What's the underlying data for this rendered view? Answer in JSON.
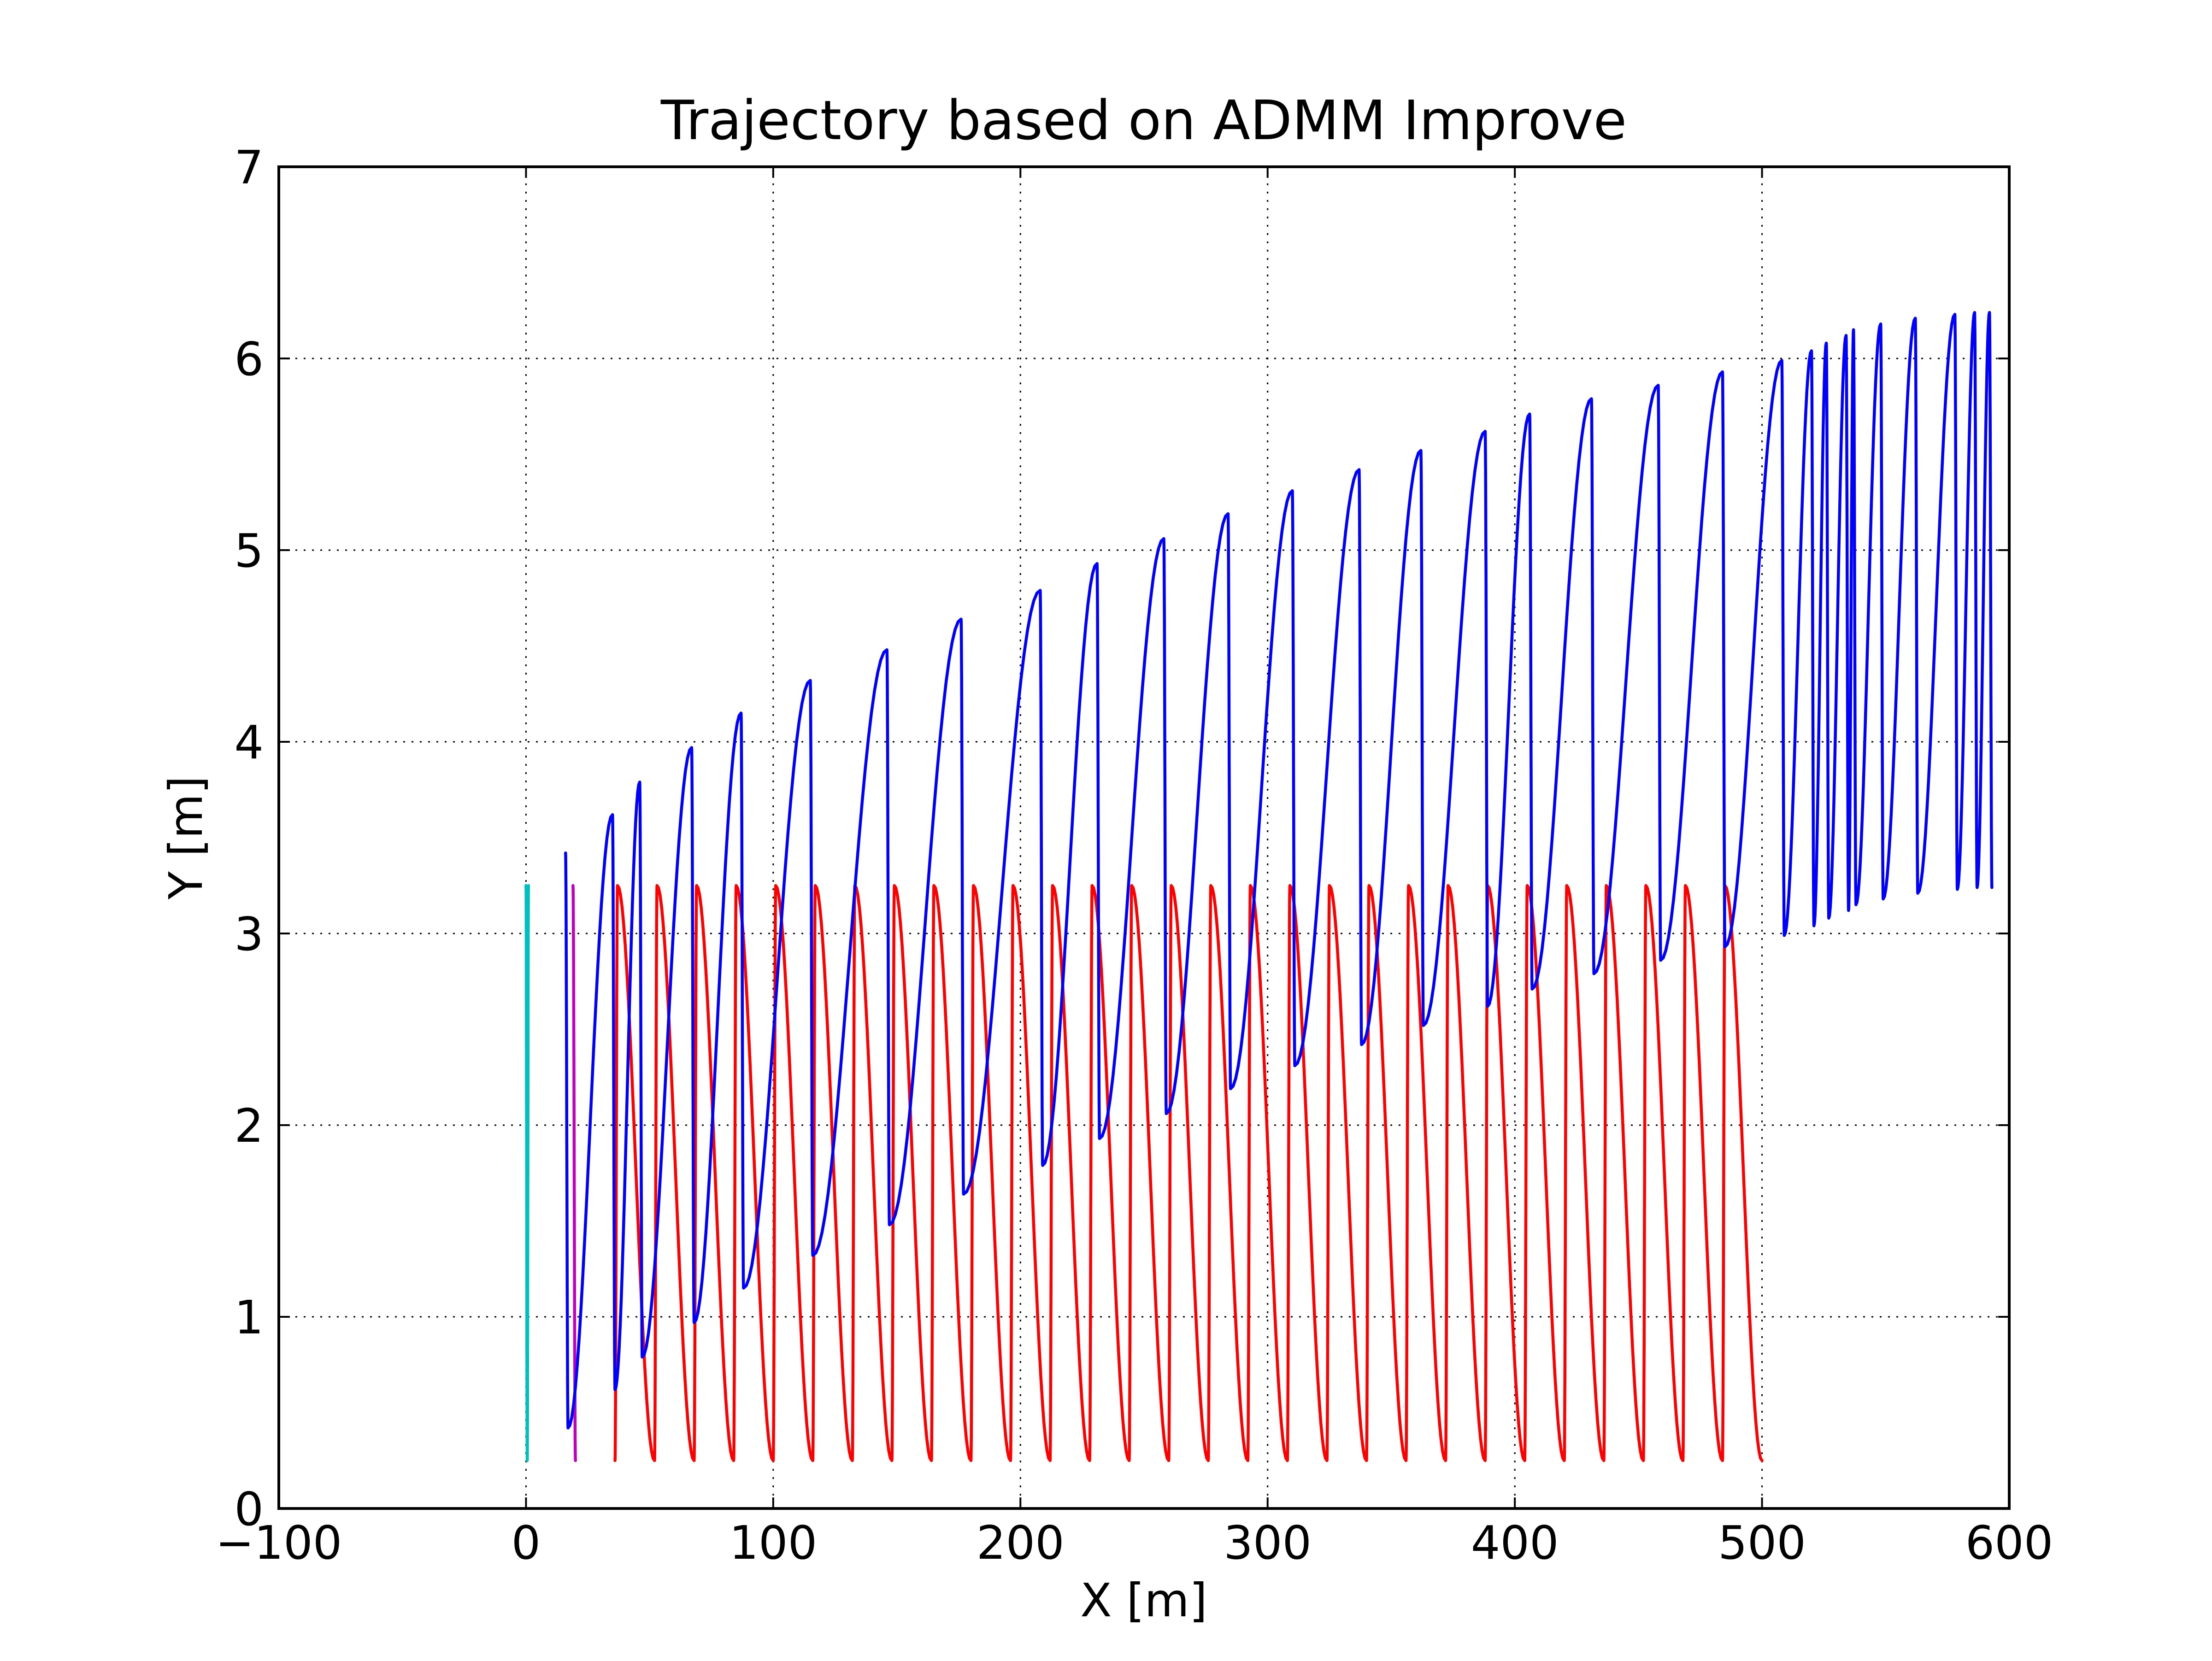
{
  "chart_data": {
    "type": "line",
    "title": "Trajectory based on ADMM Improve",
    "xlabel": "X [m]",
    "ylabel": "Y [m]",
    "xlim": [
      -100,
      600
    ],
    "ylim": [
      0,
      7
    ],
    "xticks": [
      -100,
      0,
      100,
      200,
      300,
      400,
      500,
      600
    ],
    "xtick_labels": [
      "−100",
      "0",
      "100",
      "200",
      "300",
      "400",
      "500",
      "600"
    ],
    "yticks": [
      0,
      1,
      2,
      3,
      4,
      5,
      6,
      7
    ],
    "ytick_labels": [
      "0",
      "1",
      "2",
      "3",
      "4",
      "5",
      "6",
      "7"
    ],
    "grid": true,
    "grid_style": "dotted",
    "series": [
      {
        "color": "#00bfbf",
        "turns": [
          [
            0,
            3.25
          ],
          [
            0.5,
            0.25
          ],
          [
            1,
            3.25
          ]
        ]
      },
      {
        "color": "#bf00bf",
        "turns": [
          [
            19,
            3.25
          ],
          [
            20,
            0.25
          ]
        ]
      },
      {
        "color": "#ff0000",
        "turns": [
          [
            36,
            0.25
          ],
          [
            37,
            3.25
          ],
          [
            52,
            0.25
          ],
          [
            53,
            3.25
          ],
          [
            68,
            0.25
          ],
          [
            69,
            3.25
          ],
          [
            84,
            0.25
          ],
          [
            85,
            3.25
          ],
          [
            100,
            0.25
          ],
          [
            101,
            3.25
          ],
          [
            116,
            0.25
          ],
          [
            117,
            3.25
          ],
          [
            132,
            0.25
          ],
          [
            133,
            3.25
          ],
          [
            148,
            0.25
          ],
          [
            149,
            3.25
          ],
          [
            164,
            0.25
          ],
          [
            165,
            3.25
          ],
          [
            180,
            0.25
          ],
          [
            181,
            3.25
          ],
          [
            196,
            0.25
          ],
          [
            197,
            3.25
          ],
          [
            212,
            0.25
          ],
          [
            213,
            3.25
          ],
          [
            228,
            0.25
          ],
          [
            229,
            3.25
          ],
          [
            244,
            0.25
          ],
          [
            245,
            3.25
          ],
          [
            260,
            0.25
          ],
          [
            261,
            3.25
          ],
          [
            276,
            0.25
          ],
          [
            277,
            3.25
          ],
          [
            292,
            0.25
          ],
          [
            293,
            3.25
          ],
          [
            308,
            0.25
          ],
          [
            309,
            3.25
          ],
          [
            324,
            0.25
          ],
          [
            325,
            3.25
          ],
          [
            340,
            0.25
          ],
          [
            341,
            3.25
          ],
          [
            356,
            0.25
          ],
          [
            357,
            3.25
          ],
          [
            372,
            0.25
          ],
          [
            373,
            3.25
          ],
          [
            388,
            0.25
          ],
          [
            389,
            3.25
          ],
          [
            404,
            0.25
          ],
          [
            405,
            3.25
          ],
          [
            420,
            0.25
          ],
          [
            421,
            3.25
          ],
          [
            436,
            0.25
          ],
          [
            437,
            3.25
          ],
          [
            452,
            0.25
          ],
          [
            453,
            3.25
          ],
          [
            468,
            0.25
          ],
          [
            469,
            3.25
          ],
          [
            484,
            0.25
          ],
          [
            485,
            3.25
          ],
          [
            500,
            0.25
          ]
        ]
      },
      {
        "color": "#0000ff",
        "turns": [
          [
            16,
            3.42
          ],
          [
            17,
            0.42
          ],
          [
            35,
            3.62
          ],
          [
            36,
            0.62
          ],
          [
            46,
            3.79
          ],
          [
            47,
            0.79
          ],
          [
            67,
            3.97
          ],
          [
            68,
            0.97
          ],
          [
            87,
            4.15
          ],
          [
            88,
            1.15
          ],
          [
            115,
            4.32
          ],
          [
            116,
            1.32
          ],
          [
            146,
            4.48
          ],
          [
            147,
            1.48
          ],
          [
            176,
            4.64
          ],
          [
            177,
            1.64
          ],
          [
            208,
            4.79
          ],
          [
            209,
            1.79
          ],
          [
            231,
            4.93
          ],
          [
            232,
            1.93
          ],
          [
            258,
            5.06
          ],
          [
            259,
            2.06
          ],
          [
            284,
            5.19
          ],
          [
            285,
            2.19
          ],
          [
            310,
            5.31
          ],
          [
            311,
            2.31
          ],
          [
            337,
            5.42
          ],
          [
            338,
            2.42
          ],
          [
            362,
            5.52
          ],
          [
            363,
            2.52
          ],
          [
            388,
            5.62
          ],
          [
            389,
            2.62
          ],
          [
            406,
            5.71
          ],
          [
            407,
            2.71
          ],
          [
            431,
            5.79
          ],
          [
            432,
            2.79
          ],
          [
            458,
            5.86
          ],
          [
            459,
            2.86
          ],
          [
            484,
            5.93
          ],
          [
            485,
            2.93
          ],
          [
            508,
            5.99
          ],
          [
            509,
            2.99
          ],
          [
            520,
            6.04
          ],
          [
            521,
            3.04
          ],
          [
            526,
            6.08
          ],
          [
            527,
            3.08
          ],
          [
            534,
            6.12
          ],
          [
            535,
            3.12
          ],
          [
            537,
            6.15
          ],
          [
            538,
            3.15
          ],
          [
            548,
            6.18
          ],
          [
            549,
            3.18
          ],
          [
            562,
            6.21
          ],
          [
            563,
            3.21
          ],
          [
            578,
            6.23
          ],
          [
            579,
            3.23
          ],
          [
            586,
            6.24
          ],
          [
            587,
            3.24
          ],
          [
            592,
            6.24
          ],
          [
            593,
            3.24
          ]
        ]
      }
    ]
  }
}
